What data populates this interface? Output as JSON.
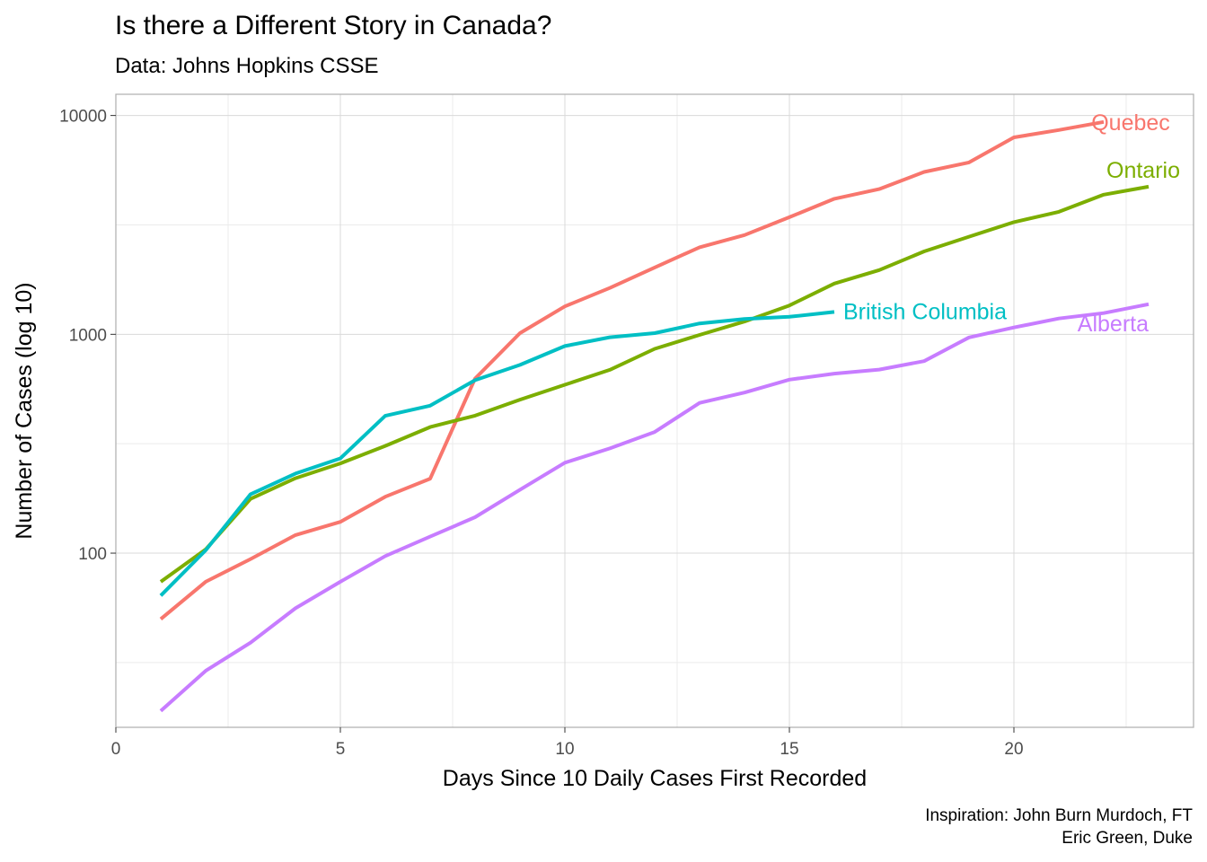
{
  "title": "Is there a Different Story in Canada?",
  "subtitle": "Data: Johns Hopkins CSSE",
  "caption_line1": "Inspiration: John Burn Murdoch, FT",
  "caption_line2": "Eric Green, Duke",
  "chart_data": {
    "type": "line",
    "xlabel": "Days Since 10 Daily Cases First Recorded",
    "ylabel": "Number of Cases (log 10)",
    "xlim": [
      0,
      24
    ],
    "ylim": [
      16,
      12500
    ],
    "y_scale": "log10",
    "x_ticks": [
      0,
      5,
      10,
      15,
      20
    ],
    "y_ticks": [
      100,
      1000,
      10000
    ],
    "y_tick_labels": [
      "100",
      "1000",
      "10000"
    ],
    "grid": true,
    "legend": "direct labels at line ends",
    "series": [
      {
        "name": "Quebec",
        "color": "#F8766D",
        "x": [
          1,
          2,
          3,
          4,
          5,
          6,
          7,
          8,
          9,
          10,
          11,
          12,
          13,
          14,
          15,
          16,
          17,
          18,
          19,
          20,
          21,
          22
        ],
        "values": [
          50,
          74,
          94,
          121,
          139,
          181,
          219,
          628,
          1013,
          1342,
          1629,
          2021,
          2498,
          2840,
          3430,
          4162,
          4611,
          5518,
          6101,
          7944,
          8580,
          9340
        ]
      },
      {
        "name": "Ontario",
        "color": "#7CAE00",
        "x": [
          1,
          2,
          3,
          4,
          5,
          6,
          7,
          8,
          9,
          10,
          11,
          12,
          13,
          14,
          15,
          16,
          17,
          18,
          19,
          20,
          21,
          22,
          23
        ],
        "values": [
          74,
          104,
          177,
          220,
          257,
          309,
          377,
          425,
          503,
          588,
          688,
          858,
          994,
          1144,
          1355,
          1706,
          1966,
          2392,
          2793,
          3255,
          3630,
          4347,
          4726
        ]
      },
      {
        "name": "British Columbia",
        "color": "#00BFC4",
        "x": [
          1,
          2,
          3,
          4,
          5,
          6,
          7,
          8,
          9,
          10,
          11,
          12,
          13,
          14,
          15,
          16
        ],
        "values": [
          64,
          103,
          186,
          231,
          271,
          424,
          472,
          617,
          725,
          884,
          970,
          1013,
          1121,
          1174,
          1203,
          1266
        ]
      },
      {
        "name": "Alberta",
        "color": "#C77CFF",
        "x": [
          1,
          2,
          3,
          4,
          5,
          6,
          7,
          8,
          9,
          10,
          11,
          12,
          13,
          14,
          15,
          16,
          17,
          18,
          19,
          20,
          21,
          22,
          23
        ],
        "values": [
          19,
          29,
          39,
          56,
          74,
          97,
          119,
          146,
          195,
          259,
          301,
          358,
          486,
          542,
          621,
          661,
          690,
          754,
          968,
          1075,
          1181,
          1250,
          1373
        ]
      }
    ]
  }
}
